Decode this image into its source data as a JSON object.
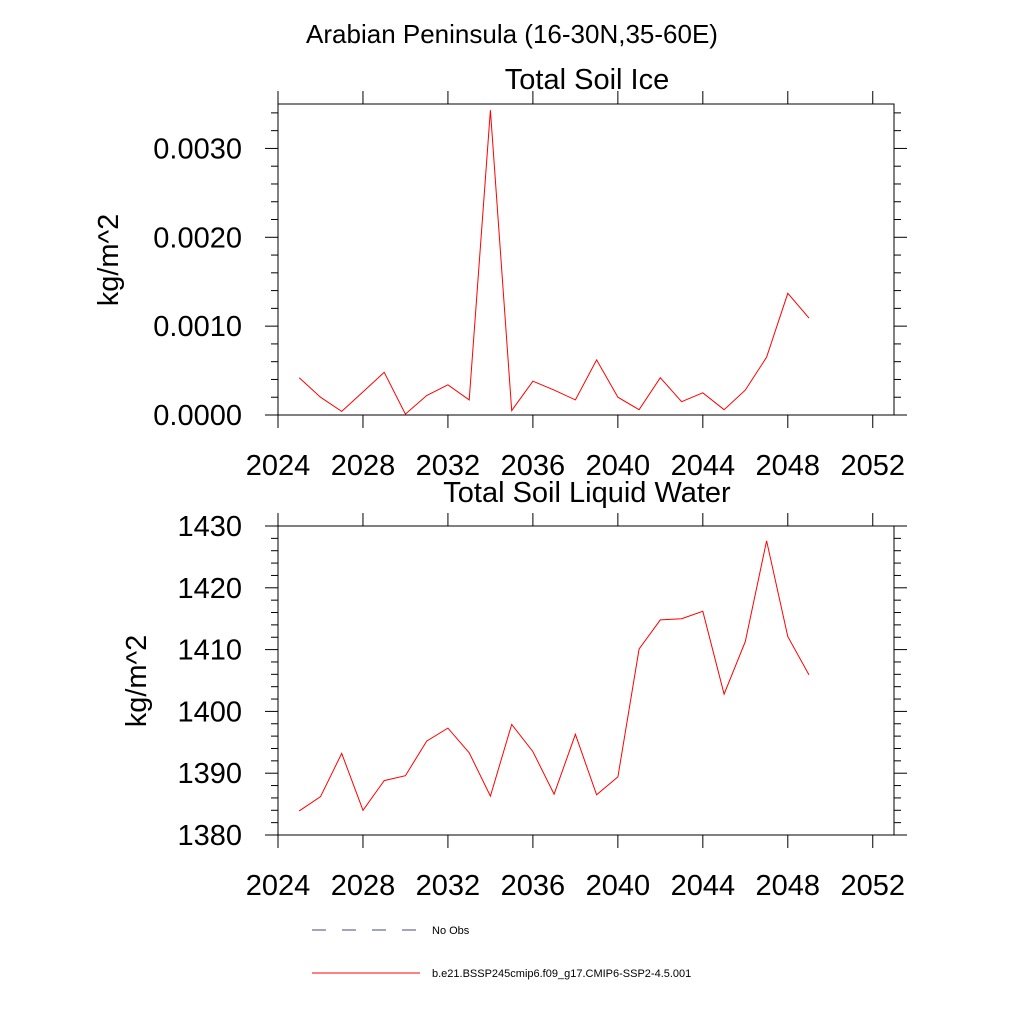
{
  "figure": {
    "title": "Arabian Peninsula (16-30N,35-60E)"
  },
  "chart_data": [
    {
      "type": "line",
      "title": "Total Soil Ice",
      "xlabel": "",
      "ylabel": "kg/m^2",
      "xlim": [
        2024,
        2053
      ],
      "ylim": [
        0,
        0.0035
      ],
      "xticks": [
        2024,
        2028,
        2032,
        2036,
        2040,
        2044,
        2048,
        2052
      ],
      "xtick_labels": [
        "2024",
        "2028",
        "2032",
        "2036",
        "2040",
        "2044",
        "2048",
        "2052"
      ],
      "yticks": [
        0,
        0.001,
        0.002,
        0.003
      ],
      "ytick_labels": [
        "0.0000",
        "0.0010",
        "0.0020",
        "0.0030"
      ],
      "grid": false,
      "series": [
        {
          "name": "b.e21.BSSP245cmip6.f09_g17.CMIP6-SSP2-4.5.001",
          "color": "#ff0000",
          "x": [
            2025,
            2026,
            2027,
            2028,
            2029,
            2030,
            2031,
            2032,
            2033,
            2034,
            2035,
            2036,
            2037,
            2038,
            2039,
            2040,
            2041,
            2042,
            2043,
            2044,
            2045,
            2046,
            2047,
            2048,
            2049
          ],
          "y": [
            0.00042,
            0.0002,
            4e-05,
            0.00026,
            0.00048,
            1e-05,
            0.00022,
            0.00034,
            0.00017,
            0.00343,
            5e-05,
            0.00038,
            0.00028,
            0.00017,
            0.00062,
            0.0002,
            6e-05,
            0.00042,
            0.00015,
            0.00025,
            6e-05,
            0.00028,
            0.00065,
            0.00137,
            0.00109
          ]
        }
      ]
    },
    {
      "type": "line",
      "title": "Total Soil Liquid Water",
      "xlabel": "",
      "ylabel": "kg/m^2",
      "xlim": [
        2024,
        2053
      ],
      "ylim": [
        1380,
        1430
      ],
      "xticks": [
        2024,
        2028,
        2032,
        2036,
        2040,
        2044,
        2048,
        2052
      ],
      "xtick_labels": [
        "2024",
        "2028",
        "2032",
        "2036",
        "2040",
        "2044",
        "2048",
        "2052"
      ],
      "yticks": [
        1380,
        1390,
        1400,
        1410,
        1420,
        1430
      ],
      "ytick_labels": [
        "1380",
        "1390",
        "1400",
        "1410",
        "1420",
        "1430"
      ],
      "grid": false,
      "series": [
        {
          "name": "b.e21.BSSP245cmip6.f09_g17.CMIP6-SSP2-4.5.001",
          "color": "#ff0000",
          "x": [
            2025,
            2026,
            2027,
            2028,
            2029,
            2030,
            2031,
            2032,
            2033,
            2034,
            2035,
            2036,
            2037,
            2038,
            2039,
            2040,
            2041,
            2042,
            2043,
            2044,
            2045,
            2046,
            2047,
            2048,
            2049
          ],
          "y": [
            1383.9,
            1386.2,
            1393.2,
            1384.0,
            1388.8,
            1389.6,
            1395.2,
            1397.3,
            1393.3,
            1386.3,
            1397.9,
            1393.5,
            1386.6,
            1396.3,
            1386.5,
            1389.4,
            1410.1,
            1414.8,
            1415.0,
            1416.2,
            1402.8,
            1411.3,
            1427.6,
            1412.1,
            1405.9
          ]
        }
      ]
    }
  ],
  "legend": [
    {
      "label": "No Obs",
      "color": "#4a4a7a",
      "style": "dashed"
    },
    {
      "label": "b.e21.BSSP245cmip6.f09_g17.CMIP6-SSP2-4.5.001",
      "color": "#ff0000",
      "style": "solid"
    }
  ]
}
